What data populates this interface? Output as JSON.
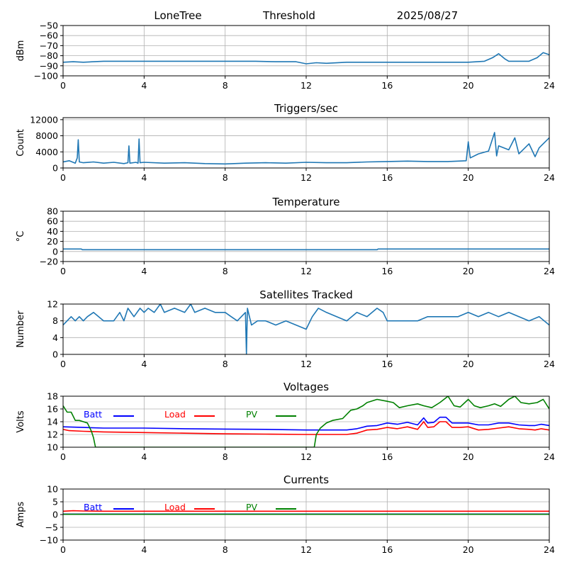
{
  "header": {
    "station": "LoneTree",
    "mode": "Threshold",
    "date": "2025/08/27"
  },
  "colors": {
    "series": "#1f77b4",
    "batt": "#0000ff",
    "load": "#ff0000",
    "pv": "#008000",
    "grid": "#b0b0b0"
  },
  "chart_data": [
    {
      "type": "line",
      "title": "",
      "xlabel": "",
      "ylabel": "dBm",
      "xlim": [
        0,
        24
      ],
      "ylim": [
        -100,
        -50
      ],
      "xticks": [
        0,
        4,
        8,
        12,
        16,
        20,
        24
      ],
      "yticks": [
        -100,
        -90,
        -80,
        -70,
        -60,
        -50
      ],
      "ytick_labels": [
        "−100",
        "−90",
        "−80",
        "−70",
        "−60",
        "−50"
      ],
      "grid": true,
      "series": [
        {
          "x": [
            0,
            0.5,
            1.0,
            1.5,
            2.0,
            4.0,
            6.0,
            8.0,
            9.5,
            10.5,
            11.5,
            12.0,
            12.5,
            13.0,
            14.0,
            15.0,
            16.0,
            17.0,
            18.0,
            19.0,
            20.0,
            20.8,
            21.2,
            21.5,
            21.8,
            22.0,
            22.5,
            23.0,
            23.4,
            23.7,
            24.0
          ],
          "y": [
            -86.5,
            -86,
            -86.5,
            -86,
            -85.5,
            -85.5,
            -85.5,
            -85.5,
            -85.5,
            -86,
            -86,
            -88,
            -87,
            -87.5,
            -86.5,
            -86.5,
            -86.5,
            -86.5,
            -86.5,
            -86.5,
            -86.5,
            -85.5,
            -82,
            -78,
            -83,
            -85.5,
            -85.5,
            -85.5,
            -82,
            -77,
            -79
          ]
        }
      ]
    },
    {
      "type": "line",
      "title": "Triggers/sec",
      "xlabel": "",
      "ylabel": "Count",
      "xlim": [
        0,
        24
      ],
      "ylim": [
        0,
        12500
      ],
      "xticks": [
        0,
        4,
        8,
        12,
        16,
        20,
        24
      ],
      "yticks": [
        0,
        4000,
        8000,
        12000
      ],
      "ytick_labels": [
        "0",
        "4000",
        "8000",
        "12000"
      ],
      "grid": true,
      "series": [
        {
          "x": [
            0,
            0.3,
            0.6,
            0.7,
            0.75,
            0.8,
            1.0,
            1.5,
            2.0,
            2.5,
            3.0,
            3.2,
            3.25,
            3.3,
            3.6,
            3.7,
            3.75,
            3.8,
            4.0,
            5.0,
            6.0,
            7.0,
            8.0,
            9.0,
            10.0,
            11.0,
            12.0,
            13.0,
            14.0,
            15.0,
            16.0,
            17.0,
            18.0,
            19.0,
            19.9,
            20.0,
            20.1,
            20.5,
            21.0,
            21.3,
            21.4,
            21.5,
            22.0,
            22.3,
            22.5,
            23.0,
            23.3,
            23.5,
            24.0
          ],
          "y": [
            1500,
            1800,
            1200,
            2500,
            7000,
            1500,
            1300,
            1500,
            1200,
            1400,
            1100,
            1300,
            5500,
            1200,
            1400,
            1200,
            7200,
            1300,
            1400,
            1200,
            1300,
            1100,
            1000,
            1200,
            1300,
            1200,
            1400,
            1300,
            1300,
            1500,
            1600,
            1700,
            1600,
            1600,
            1800,
            6500,
            2500,
            3500,
            4200,
            8800,
            3000,
            5500,
            4500,
            7500,
            3500,
            6000,
            2800,
            5000,
            7500
          ]
        }
      ]
    },
    {
      "type": "line",
      "title": "Temperature",
      "xlabel": "",
      "ylabel": "°C",
      "xlim": [
        0,
        24
      ],
      "ylim": [
        -20,
        80
      ],
      "xticks": [
        0,
        4,
        8,
        12,
        16,
        20,
        24
      ],
      "yticks": [
        -20,
        0,
        20,
        40,
        60,
        80
      ],
      "ytick_labels": [
        "−20",
        "0",
        "20",
        "40",
        "60",
        "80"
      ],
      "grid": true,
      "series": [
        {
          "x": [
            0,
            0.9,
            0.95,
            15.5,
            15.55,
            24
          ],
          "y": [
            5,
            5,
            3.5,
            3.5,
            5,
            5
          ]
        }
      ]
    },
    {
      "type": "line",
      "title": "Satellites Tracked",
      "xlabel": "",
      "ylabel": "Number",
      "xlim": [
        0,
        24
      ],
      "ylim": [
        0,
        12
      ],
      "xticks": [
        0,
        4,
        8,
        12,
        16,
        20,
        24
      ],
      "yticks": [
        0,
        4,
        8,
        12
      ],
      "ytick_labels": [
        "0",
        "4",
        "8",
        "12"
      ],
      "grid": true,
      "series": [
        {
          "x": [
            0,
            0.2,
            0.4,
            0.6,
            0.8,
            1.0,
            1.2,
            1.5,
            2.0,
            2.5,
            2.8,
            3.0,
            3.2,
            3.5,
            3.8,
            4.0,
            4.2,
            4.5,
            4.8,
            5.0,
            5.5,
            6.0,
            6.3,
            6.5,
            7.0,
            7.5,
            8.0,
            8.3,
            8.6,
            9.0,
            9.05,
            9.1,
            9.3,
            9.6,
            10.0,
            10.5,
            11.0,
            11.5,
            12.0,
            12.3,
            12.6,
            13.0,
            13.5,
            14.0,
            14.5,
            15.0,
            15.5,
            15.8,
            16.0,
            16.5,
            17.0,
            17.5,
            18.0,
            18.5,
            19.0,
            19.5,
            20.0,
            20.5,
            21.0,
            21.5,
            22.0,
            22.5,
            23.0,
            23.5,
            24.0
          ],
          "y": [
            7,
            8,
            9,
            8,
            9,
            8,
            9,
            10,
            8,
            8,
            10,
            8,
            11,
            9,
            11,
            10,
            11,
            10,
            12,
            10,
            11,
            10,
            12,
            10,
            11,
            10,
            10,
            9,
            8,
            10,
            0,
            11,
            7,
            8,
            8,
            7,
            8,
            7,
            6,
            9,
            11,
            10,
            9,
            8,
            10,
            9,
            11,
            10,
            8,
            8,
            8,
            8,
            9,
            9,
            9,
            9,
            10,
            9,
            10,
            9,
            10,
            9,
            8,
            9,
            7
          ]
        }
      ]
    },
    {
      "type": "line",
      "title": "Voltages",
      "xlabel": "",
      "ylabel": "Volts",
      "xlim": [
        0,
        24
      ],
      "ylim": [
        10,
        18
      ],
      "xticks": [
        0,
        4,
        8,
        12,
        16,
        20,
        24
      ],
      "yticks": [
        10,
        12,
        14,
        16,
        18
      ],
      "ytick_labels": [
        "10",
        "12",
        "14",
        "16",
        "18"
      ],
      "grid": true,
      "legend": "top-left, horizontal",
      "series": [
        {
          "name": "Batt",
          "color": "#0000ff",
          "x": [
            0,
            1,
            2,
            4,
            6,
            8,
            10,
            12,
            13,
            14,
            14.5,
            15,
            15.5,
            16,
            16.5,
            17,
            17.5,
            17.8,
            18,
            18.3,
            18.6,
            18.9,
            19.2,
            19.6,
            20,
            20.5,
            21,
            21.5,
            22,
            22.5,
            23,
            23.3,
            23.6,
            24
          ],
          "y": [
            13.2,
            13.1,
            13.0,
            13.0,
            12.9,
            12.85,
            12.8,
            12.7,
            12.7,
            12.7,
            12.9,
            13.3,
            13.4,
            13.8,
            13.6,
            13.9,
            13.5,
            14.6,
            13.8,
            13.9,
            14.7,
            14.7,
            13.8,
            13.8,
            13.8,
            13.5,
            13.5,
            13.8,
            13.8,
            13.5,
            13.4,
            13.4,
            13.6,
            13.4
          ]
        },
        {
          "name": "Load",
          "color": "#ff0000",
          "x": [
            0,
            0.3,
            1,
            2,
            4,
            6,
            8,
            10,
            12,
            13,
            14,
            14.5,
            15,
            15.5,
            16,
            16.5,
            17,
            17.5,
            17.8,
            18,
            18.3,
            18.6,
            18.9,
            19.2,
            19.6,
            20,
            20.5,
            21,
            21.5,
            22,
            22.5,
            23,
            23.3,
            23.6,
            24
          ],
          "y": [
            12.8,
            12.6,
            12.5,
            12.4,
            12.3,
            12.2,
            12.1,
            12.05,
            12.0,
            12.0,
            12.0,
            12.2,
            12.7,
            12.8,
            13.1,
            12.9,
            13.2,
            12.8,
            14.0,
            13.1,
            13.2,
            14.0,
            14.0,
            13.1,
            13.1,
            13.2,
            12.7,
            12.8,
            13.0,
            13.2,
            12.9,
            12.8,
            12.7,
            12.9,
            12.7
          ]
        },
        {
          "name": "PV",
          "color": "#008000",
          "x": [
            0,
            0.2,
            0.4,
            0.6,
            0.8,
            1.0,
            1.2,
            1.4,
            1.5,
            1.6,
            12.4,
            12.5,
            12.7,
            13.0,
            13.3,
            13.8,
            14.2,
            14.5,
            14.8,
            15.0,
            15.5,
            16.0,
            16.3,
            16.6,
            17.0,
            17.5,
            17.8,
            18.2,
            18.6,
            18.8,
            19.0,
            19.3,
            19.6,
            20.0,
            20.3,
            20.6,
            21.0,
            21.3,
            21.6,
            22.0,
            22.3,
            22.6,
            23.0,
            23.4,
            23.7,
            24.0
          ],
          "y": [
            16.5,
            15.5,
            15.5,
            14.2,
            14.2,
            14.0,
            13.8,
            12.5,
            11.5,
            10.0,
            10.0,
            12.0,
            13.0,
            13.8,
            14.2,
            14.5,
            15.8,
            16.0,
            16.5,
            17.0,
            17.5,
            17.2,
            17.0,
            16.2,
            16.5,
            16.8,
            16.5,
            16.2,
            17.0,
            17.5,
            18.0,
            16.5,
            16.3,
            17.5,
            16.5,
            16.2,
            16.5,
            16.8,
            16.4,
            17.5,
            18.0,
            17.0,
            16.8,
            17.0,
            17.5,
            16.0
          ]
        }
      ]
    },
    {
      "type": "line",
      "title": "Currents",
      "xlabel": "",
      "ylabel": "Amps",
      "xlim": [
        0,
        24
      ],
      "ylim": [
        -10,
        10
      ],
      "xticks": [
        0,
        4,
        8,
        12,
        16,
        20,
        24
      ],
      "yticks": [
        -10,
        -5,
        0,
        5,
        10
      ],
      "ytick_labels": [
        "−10",
        "−5",
        "0",
        "5",
        "10"
      ],
      "grid": true,
      "legend": "top-left, horizontal",
      "series": [
        {
          "name": "Batt",
          "color": "#0000ff",
          "x": [
            0,
            24
          ],
          "y": [
            0.2,
            0.2
          ]
        },
        {
          "name": "Load",
          "color": "#ff0000",
          "x": [
            0,
            0.5,
            1,
            2,
            4,
            6,
            8,
            10,
            12,
            14,
            16,
            18,
            20,
            22,
            24
          ],
          "y": [
            1.3,
            1.5,
            1.4,
            1.3,
            1.3,
            1.3,
            1.3,
            1.3,
            1.3,
            1.3,
            1.3,
            1.3,
            1.3,
            1.3,
            1.3
          ]
        },
        {
          "name": "PV",
          "color": "#008000",
          "x": [
            0,
            24
          ],
          "y": [
            0.1,
            0.1
          ]
        }
      ]
    }
  ]
}
